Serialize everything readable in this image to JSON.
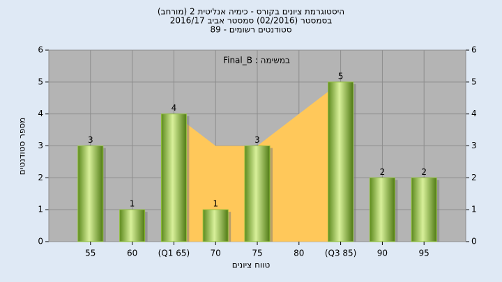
{
  "chart_data": {
    "type": "bar",
    "title": "היסטוגרמת ציונים בקורס - כימיה אנליטית 2 (מורחב)",
    "subtitle": [
      "בסמסטר  (02/2016)  סמסטר אביב 2016/17",
      "סטודנטים רשומים - 89"
    ],
    "annotation": "במשימה : Final_B",
    "x_label": "טווח ציונים",
    "y_label": "מספר סטודנטים",
    "categories": [
      "55",
      "60",
      "(Q1 65)",
      "70",
      "75",
      "80",
      "(Q3 85)",
      "90",
      "95"
    ],
    "series": [
      {
        "type": "area",
        "color": "#ffc85a",
        "values": [
          null,
          null,
          4,
          3,
          3,
          4,
          5,
          null,
          null
        ]
      },
      {
        "type": "bar",
        "color": "#8fbf3a",
        "values": [
          3,
          1,
          4,
          1,
          3,
          null,
          5,
          2,
          2
        ]
      }
    ],
    "ylim": [
      0,
      6
    ],
    "yticks": [
      0,
      1,
      2,
      3,
      4,
      5,
      6
    ],
    "y2lim": [
      0,
      6
    ],
    "y2ticks": [
      0,
      1,
      2,
      3,
      4,
      5,
      6
    ],
    "grid": true
  }
}
